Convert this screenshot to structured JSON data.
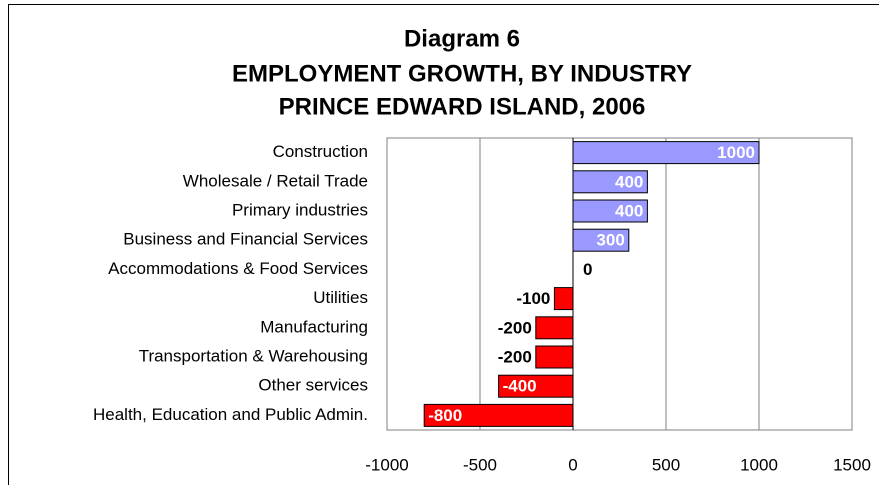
{
  "chart_data": {
    "type": "barh",
    "title": [
      "Diagram 6",
      "EMPLOYMENT GROWTH, BY INDUSTRY",
      "PRINCE EDWARD ISLAND, 2006"
    ],
    "categories": [
      "Construction",
      "Wholesale / Retail Trade",
      "Primary industries",
      "Business and Financial Services",
      "Accommodations & Food Services",
      "Utilities",
      "Manufacturing",
      "Transportation & Warehousing",
      "Other services",
      "Health, Education and Public Admin."
    ],
    "values": [
      1000,
      400,
      400,
      300,
      0,
      -100,
      -200,
      -200,
      -400,
      -800
    ],
    "colors": [
      "#9999ff",
      "#9999ff",
      "#9999ff",
      "#9999ff",
      "#9999ff",
      "#ff0000",
      "#ff0000",
      "#ff0000",
      "#ff0000",
      "#ff0000"
    ],
    "xlim": [
      -1000,
      1500
    ],
    "xticks": [
      -1000,
      -500,
      0,
      500,
      1000,
      1500
    ],
    "grid": true
  }
}
